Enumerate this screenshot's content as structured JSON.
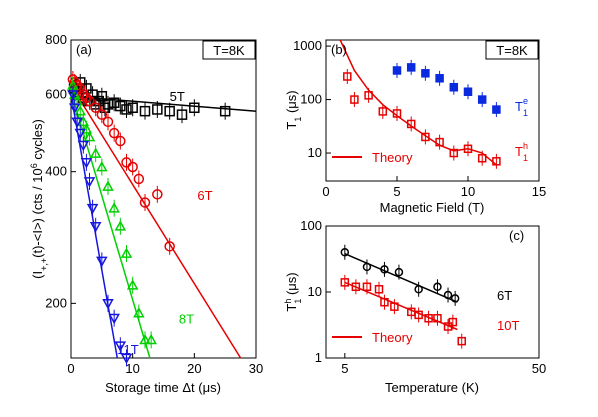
{
  "colors": {
    "black": "#000000",
    "red": "#e60000",
    "green": "#00d000",
    "blue": "#1515dd",
    "blue_filled": "#0a2ae0"
  },
  "chart_data": [
    {
      "id": "a",
      "type": "scatter",
      "panel_label": "(a)",
      "temp_box": "T=8K",
      "xlabel": "Storage time Δt (μs)",
      "ylabel_parts": {
        "p1": "(I",
        "sub1": "+,+",
        "p2": "(t)-<I>) (cts / 10",
        "sup": "6",
        "p3": " cycles)"
      },
      "xlim": [
        0,
        30
      ],
      "ylim": [
        150,
        800
      ],
      "yscale": "log",
      "xticks": [
        "0",
        "10",
        "20",
        "30"
      ],
      "yticks": [
        "200",
        "400",
        "600",
        "800"
      ],
      "series": [
        {
          "name": "5T",
          "color": "#000000",
          "marker": "square",
          "label_xy": [
            16,
            580
          ],
          "points": [
            [
              0.5,
              620
            ],
            [
              1,
              600
            ],
            [
              1.5,
              640
            ],
            [
              2,
              590
            ],
            [
              2.5,
              620
            ],
            [
              3,
              580
            ],
            [
              3.5,
              600
            ],
            [
              4,
              570
            ],
            [
              4.5,
              580
            ],
            [
              5,
              595
            ],
            [
              5.5,
              560
            ],
            [
              6,
              570
            ],
            [
              7,
              575
            ],
            [
              8,
              565
            ],
            [
              9,
              555
            ],
            [
              10,
              560
            ],
            [
              12,
              550
            ],
            [
              14,
              555
            ],
            [
              16,
              550
            ],
            [
              18,
              540
            ],
            [
              20,
              560
            ],
            [
              25,
              550
            ]
          ],
          "fit": [
            [
              0,
              595
            ],
            [
              30,
              550
            ]
          ]
        },
        {
          "name": "6T",
          "color": "#e60000",
          "marker": "circle",
          "label_xy": [
            20.5,
            345
          ],
          "points": [
            [
              0.3,
              650
            ],
            [
              0.6,
              640
            ],
            [
              1,
              630
            ],
            [
              1.5,
              620
            ],
            [
              2,
              600
            ],
            [
              2.5,
              590
            ],
            [
              3,
              580
            ],
            [
              4,
              560
            ],
            [
              5,
              540
            ],
            [
              6,
              520
            ],
            [
              7,
              490
            ],
            [
              8,
              470
            ],
            [
              9,
              420
            ],
            [
              10,
              410
            ],
            [
              11,
              385
            ],
            [
              12,
              340
            ],
            [
              14,
              355
            ],
            [
              16,
              270
            ]
          ],
          "fit": [
            [
              0,
              630
            ],
            [
              27.5,
              150
            ]
          ]
        },
        {
          "name": "8T",
          "color": "#00d000",
          "marker": "triangle-up",
          "label_xy": [
            17.5,
            180
          ],
          "points": [
            [
              0.3,
              630
            ],
            [
              0.6,
              600
            ],
            [
              1,
              580
            ],
            [
              1.5,
              550
            ],
            [
              2,
              520
            ],
            [
              2.5,
              500
            ],
            [
              3,
              480
            ],
            [
              4,
              440
            ],
            [
              5,
              410
            ],
            [
              6,
              370
            ],
            [
              7,
              330
            ],
            [
              8,
              300
            ],
            [
              9,
              260
            ],
            [
              10,
              220
            ],
            [
              11,
              190
            ],
            [
              12,
              165
            ],
            [
              13,
              165
            ]
          ],
          "fit": [
            [
              0,
              610
            ],
            [
              12.8,
              150
            ]
          ]
        },
        {
          "name": "11T",
          "color": "#1515dd",
          "marker": "triangle-down",
          "label_xy": [
            7.5,
            153
          ],
          "points": [
            [
              0.3,
              600
            ],
            [
              0.6,
              560
            ],
            [
              1,
              520
            ],
            [
              1.5,
              490
            ],
            [
              2,
              460
            ],
            [
              2.5,
              420
            ],
            [
              3,
              380
            ],
            [
              3.5,
              330
            ],
            [
              4,
              300
            ],
            [
              5,
              250
            ],
            [
              6,
              200
            ],
            [
              7,
              185
            ],
            [
              8,
              160
            ],
            [
              9,
              150
            ]
          ],
          "fit": [
            [
              0,
              600
            ],
            [
              7.5,
              150
            ]
          ]
        }
      ]
    },
    {
      "id": "b",
      "type": "scatter",
      "panel_label": "(b)",
      "temp_box": "T=8K",
      "xlabel": "Magnetic Field (T)",
      "ylabel_parts": {
        "base": "T",
        "sub": "1",
        "unit": " (μs)"
      },
      "xlim": [
        0,
        15
      ],
      "ylim": [
        3,
        1300
      ],
      "yscale": "log",
      "xticks": [
        "0",
        "5",
        "10",
        "15"
      ],
      "yticks": [
        "10",
        "100",
        "1000"
      ],
      "legend_line": "Theory",
      "series": [
        {
          "name_base": "T",
          "name_sub": "1",
          "name_sup": "e",
          "color": "#0a2ae0",
          "marker": "square-filled",
          "points": [
            [
              5,
              350
            ],
            [
              6,
              400
            ],
            [
              7,
              310
            ],
            [
              8,
              250
            ],
            [
              9,
              170
            ],
            [
              10,
              140
            ],
            [
              11,
              100
            ],
            [
              12,
              65
            ]
          ]
        },
        {
          "name_base": "T",
          "name_sub": "1",
          "name_sup": "h",
          "color": "#e60000",
          "marker": "square",
          "points": [
            [
              1.5,
              270
            ],
            [
              2,
              100
            ],
            [
              3,
              120
            ],
            [
              4,
              60
            ],
            [
              5,
              55
            ],
            [
              6,
              35
            ],
            [
              7,
              20
            ],
            [
              8,
              16
            ],
            [
              9,
              10
            ],
            [
              10,
              12
            ],
            [
              11,
              8
            ],
            [
              12,
              7
            ]
          ],
          "fit": [
            [
              1,
              1300
            ],
            [
              2,
              350
            ],
            [
              3,
              150
            ],
            [
              4,
              80
            ],
            [
              5,
              50
            ],
            [
              6,
              32
            ],
            [
              7,
              21
            ],
            [
              8,
              14
            ],
            [
              9,
              11
            ],
            [
              10,
              12
            ],
            [
              11,
              10
            ],
            [
              12,
              6
            ]
          ]
        }
      ]
    },
    {
      "id": "c",
      "type": "scatter",
      "panel_label": "(c)",
      "xlabel": "Temperature (K)",
      "ylabel_parts": {
        "base": "T",
        "sub": "1",
        "sup": "h",
        "unit": " (μs)"
      },
      "xlim": [
        4,
        50
      ],
      "ylim": [
        1,
        100
      ],
      "xscale": "log",
      "yscale": "log",
      "xticks": [
        "5",
        "50"
      ],
      "yticks": [
        "1",
        "10",
        "100"
      ],
      "legend_line": "Theory",
      "series": [
        {
          "name": "6T",
          "color": "#000000",
          "marker": "circle",
          "points": [
            [
              5,
              40
            ],
            [
              6.5,
              24
            ],
            [
              8,
              22
            ],
            [
              9.5,
              20
            ],
            [
              12,
              11
            ],
            [
              15,
              12
            ],
            [
              17,
              9
            ],
            [
              18.5,
              8
            ]
          ],
          "fit": [
            [
              5,
              38
            ],
            [
              19,
              7
            ]
          ]
        },
        {
          "name": "10T",
          "color": "#e60000",
          "marker": "square",
          "points": [
            [
              5,
              14
            ],
            [
              5.7,
              12
            ],
            [
              6.5,
              12
            ],
            [
              7.5,
              11
            ],
            [
              8,
              7
            ],
            [
              9,
              6
            ],
            [
              11,
              5
            ],
            [
              12,
              4.5
            ],
            [
              13.5,
              4
            ],
            [
              15,
              4
            ],
            [
              17,
              3
            ],
            [
              18,
              3.5
            ],
            [
              20,
              1.8
            ]
          ],
          "fit": [
            [
              5,
              14
            ],
            [
              19,
              2.7
            ]
          ]
        }
      ]
    }
  ]
}
